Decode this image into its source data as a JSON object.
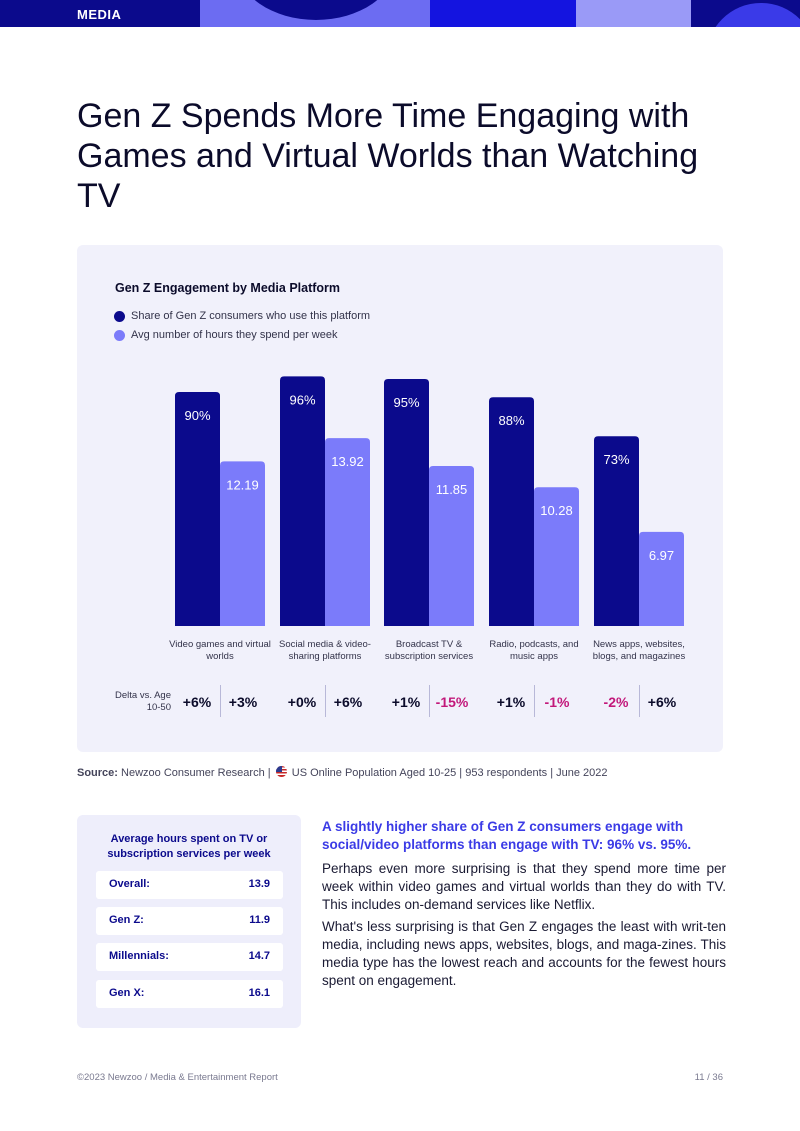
{
  "header": {
    "section": "MEDIA"
  },
  "title": "Gen Z Spends More Time Engaging with Games and Virtual Worlds than Watching TV",
  "colors": {
    "dark": "#0b0a8c",
    "light": "#7b7bfa",
    "negative": "#c2187a",
    "positive": "#0b0b2a"
  },
  "chart_data": {
    "type": "bar",
    "title": "Gen Z Engagement by Media Platform",
    "legend": [
      "Share of Gen Z consumers who use this platform",
      "Avg number of hours they spend per week"
    ],
    "categories": [
      "Video games and virtual worlds",
      "Social media & video-sharing platforms",
      "Broadcast TV & subscription services",
      "Radio, podcasts, and music apps",
      "News apps, websites, blogs, and magazines"
    ],
    "series": [
      {
        "name": "Share of Gen Z consumers who use this platform",
        "values": [
          90,
          96,
          95,
          88,
          73
        ],
        "labels": [
          "90%",
          "96%",
          "95%",
          "88%",
          "73%"
        ]
      },
      {
        "name": "Avg number of hours they spend per week",
        "values": [
          12.19,
          13.92,
          11.85,
          10.28,
          6.97
        ],
        "labels": [
          "12.19",
          "13.92",
          "11.85",
          "10.28",
          "6.97"
        ]
      }
    ],
    "delta_title": "Delta vs. Age 10-50",
    "deltas": [
      [
        "+6%",
        "+3%"
      ],
      [
        "+0%",
        "+6%"
      ],
      [
        "+1%",
        "-15%"
      ],
      [
        "+1%",
        "-1%"
      ],
      [
        "-2%",
        "+6%"
      ]
    ]
  },
  "source": {
    "label": "Source:",
    "text_a": "Newzoo Consumer Research |",
    "text_b": "US Online Population Aged 10-25 | 953 respondents | June 2022"
  },
  "hours_table": {
    "title": "Average hours spent on TV or subscription services per week",
    "rows": [
      {
        "label": "Overall:",
        "value": "13.9"
      },
      {
        "label": "Gen Z:",
        "value": "11.9"
      },
      {
        "label": "Millennials:",
        "value": "14.7"
      },
      {
        "label": "Gen X:",
        "value": "16.1"
      }
    ]
  },
  "highlight": "A slightly higher share of Gen Z consumers engage with social/video platforms than engage with TV: 96% vs. 95%.",
  "paragraphs": [
    "Perhaps even more surprising is that they spend more time per week within video games and virtual worlds than they do with TV. This includes on-demand services like Netflix.",
    "What's less surprising is that Gen Z engages the least with writ-ten media, including news apps, websites, blogs, and maga-zines. This media type has the lowest reach and accounts for the fewest hours spent on engagement."
  ],
  "footer": {
    "left": "©2023 Newzoo / Media & Entertainment Report",
    "right": "11 / 36"
  }
}
